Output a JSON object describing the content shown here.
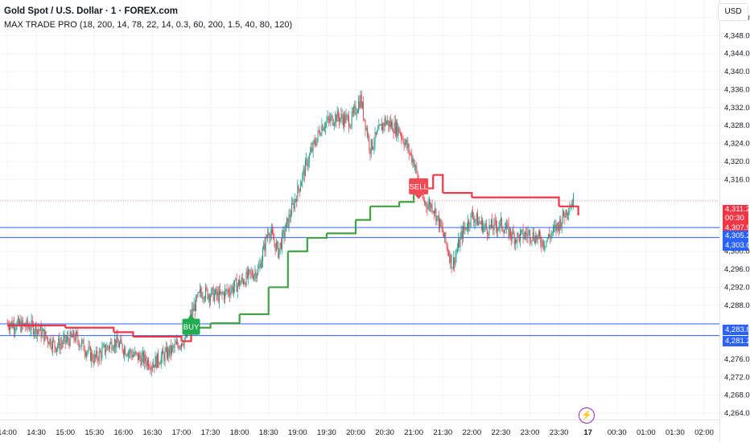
{
  "header": {
    "symbol_title": "Gold Spot / U.S. Dollar · 1 · FOREX.com",
    "indicator_title": "MAX TRADE PRO (18, 200, 14, 78, 22, 14, 0.3, 60, 200, 1.5, 40, 80, 120)",
    "currency": "USD"
  },
  "price_axis": {
    "ticks": [
      "4,352.00",
      "4,348.00",
      "4,344.00",
      "4,340.00",
      "4,336.00",
      "4,332.00",
      "4,328.00",
      "4,324.00",
      "4,320.00",
      "4,316.00",
      "4,300.00",
      "4,296.00",
      "4,292.00",
      "4,288.00",
      "4,276.00",
      "4,272.00",
      "4,268.00",
      "4,264.00"
    ],
    "current_price": "4,311.23",
    "countdown": "00:30",
    "indicator_price": "4,307.99",
    "levels": [
      "4,305.29",
      "4,303.07",
      "4,283.85",
      "4,281.24"
    ]
  },
  "time_axis": {
    "labels": [
      "14:00",
      "14:30",
      "15:00",
      "15:30",
      "16:00",
      "16:30",
      "17:00",
      "17:30",
      "18:00",
      "18:30",
      "19:00",
      "19:30",
      "20:00",
      "20:30",
      "21:00",
      "21:30",
      "22:00",
      "22:30",
      "23:00",
      "23:30",
      "17",
      "00:30",
      "01:00",
      "01:30",
      "02:00"
    ]
  },
  "signals": {
    "buy_label": "BUY",
    "sell_label": "SELL"
  },
  "colors": {
    "up": "#089981",
    "down": "#f23645",
    "trail_bull": "#43a047",
    "trail_bear": "#f23645",
    "level_line": "#2962ff",
    "buy": "#22ab4f",
    "sell": "#f24a54"
  },
  "chart_data": {
    "type": "candlestick",
    "title": "Gold Spot / U.S. Dollar · 1 · FOREX.com",
    "ylim": [
      4262,
      4354
    ],
    "x_range": [
      "14:00",
      "02:00"
    ],
    "grid": true,
    "current_price": 4311.23,
    "horizontal_levels": [
      4305.29,
      4303.07,
      4283.85,
      4281.24
    ],
    "price_path": [
      [
        "14:00",
        4284
      ],
      [
        "14:30",
        4283
      ],
      [
        "14:50",
        4279
      ],
      [
        "15:10",
        4281
      ],
      [
        "15:30",
        4276
      ],
      [
        "15:50",
        4280
      ],
      [
        "16:10",
        4277
      ],
      [
        "16:30",
        4275
      ],
      [
        "16:50",
        4278
      ],
      [
        "17:05",
        4281
      ],
      [
        "17:10",
        4286
      ],
      [
        "17:20",
        4291
      ],
      [
        "17:40",
        4290
      ],
      [
        "18:00",
        4293
      ],
      [
        "18:20",
        4296
      ],
      [
        "18:30",
        4305
      ],
      [
        "18:40",
        4300
      ],
      [
        "18:55",
        4310
      ],
      [
        "19:10",
        4320
      ],
      [
        "19:25",
        4328
      ],
      [
        "19:40",
        4330
      ],
      [
        "19:55",
        4329
      ],
      [
        "20:05",
        4334
      ],
      [
        "20:15",
        4323
      ],
      [
        "20:30",
        4329
      ],
      [
        "20:45",
        4327
      ],
      [
        "21:00",
        4320
      ],
      [
        "21:10",
        4311
      ],
      [
        "21:20",
        4310
      ],
      [
        "21:30",
        4304
      ],
      [
        "21:40",
        4297
      ],
      [
        "21:50",
        4304
      ],
      [
        "22:00",
        4308
      ],
      [
        "22:15",
        4305
      ],
      [
        "22:30",
        4306
      ],
      [
        "22:45",
        4303
      ],
      [
        "23:00",
        4304
      ],
      [
        "23:15",
        4302
      ],
      [
        "23:30",
        4306
      ],
      [
        "23:40",
        4310
      ],
      [
        "23:45",
        4311.23
      ]
    ],
    "trailing_line": [
      [
        "14:00",
        4283.5,
        "bear"
      ],
      [
        "14:30",
        4283.5,
        "bear"
      ],
      [
        "15:00",
        4283,
        "bear"
      ],
      [
        "15:50",
        4282,
        "bear"
      ],
      [
        "16:10",
        4281,
        "bear"
      ],
      [
        "17:00",
        4280,
        "bear"
      ],
      [
        "17:10",
        4282,
        "bear"
      ],
      [
        "17:10",
        4283,
        "bull"
      ],
      [
        "17:30",
        4284,
        "bull"
      ],
      [
        "18:00",
        4286,
        "bull"
      ],
      [
        "18:30",
        4292,
        "bull"
      ],
      [
        "18:50",
        4300,
        "bull"
      ],
      [
        "19:10",
        4303,
        "bull"
      ],
      [
        "19:30",
        4304,
        "bull"
      ],
      [
        "20:00",
        4307,
        "bull"
      ],
      [
        "20:15",
        4310,
        "bull"
      ],
      [
        "20:45",
        4311,
        "bull"
      ],
      [
        "21:00",
        4313,
        "bull"
      ],
      [
        "21:05",
        4314,
        "bull"
      ],
      [
        "21:10",
        4314,
        "bear"
      ],
      [
        "21:20",
        4317,
        "bear"
      ],
      [
        "21:30",
        4313,
        "bear"
      ],
      [
        "22:00",
        4312,
        "bear"
      ],
      [
        "23:00",
        4312,
        "bear"
      ],
      [
        "23:30",
        4310,
        "bear"
      ],
      [
        "23:50",
        4308,
        "bear"
      ]
    ],
    "signals": [
      {
        "type": "BUY",
        "time": "17:10",
        "price": 4285
      },
      {
        "type": "SELL",
        "time": "21:05",
        "price": 4315
      }
    ]
  }
}
